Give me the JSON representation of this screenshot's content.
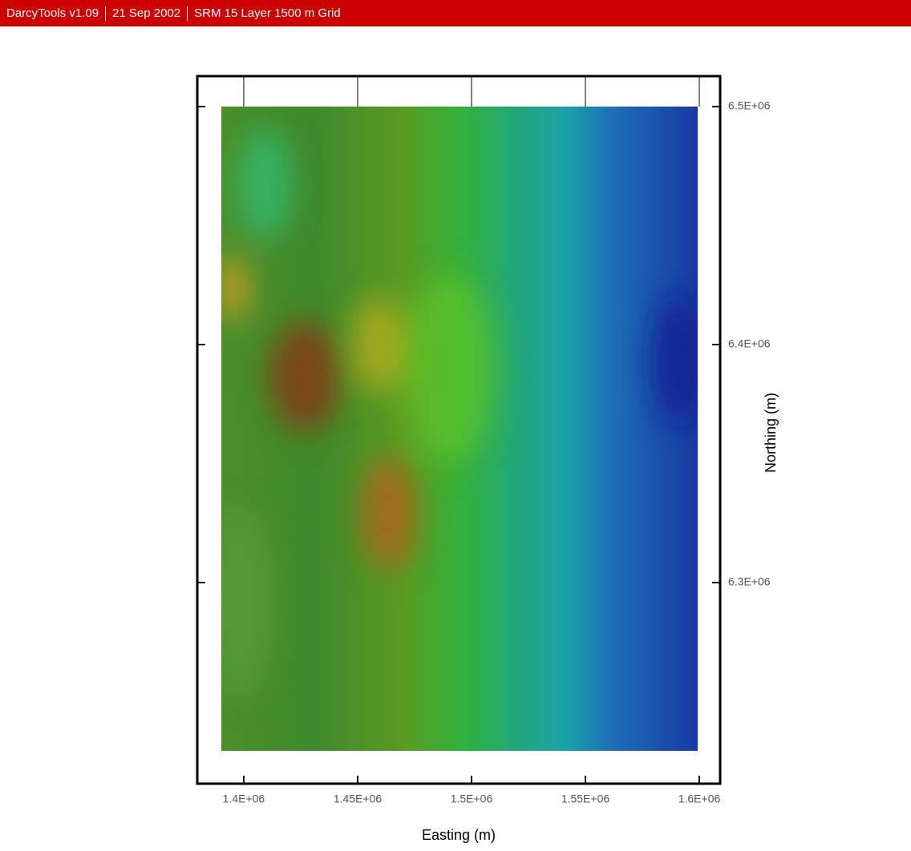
{
  "header": {
    "items": [
      "DarcyTools v1.09",
      "21 Sep 2002",
      "SRM 15 Layer 1500 m Grid"
    ]
  },
  "chart_data": {
    "type": "heatmap",
    "xlabel": "Easting (m)",
    "ylabel": "Northing (m)",
    "xlim": [
      1379600,
      1609150
    ],
    "ylim": [
      6215500,
      6512800
    ],
    "xticks": [
      {
        "value": 1400000,
        "label": "1.4E+06"
      },
      {
        "value": 1450000,
        "label": "1.45E+06"
      },
      {
        "value": 1500000,
        "label": "1.5E+06"
      },
      {
        "value": 1550000,
        "label": "1.55E+06"
      },
      {
        "value": 1600000,
        "label": "1.6E+06"
      }
    ],
    "yticks": [
      {
        "value": 6300000,
        "label": "6.3E+06"
      },
      {
        "value": 6400000,
        "label": "6.4E+06"
      },
      {
        "value": 6500000,
        "label": "6.5E+06"
      }
    ]
  }
}
